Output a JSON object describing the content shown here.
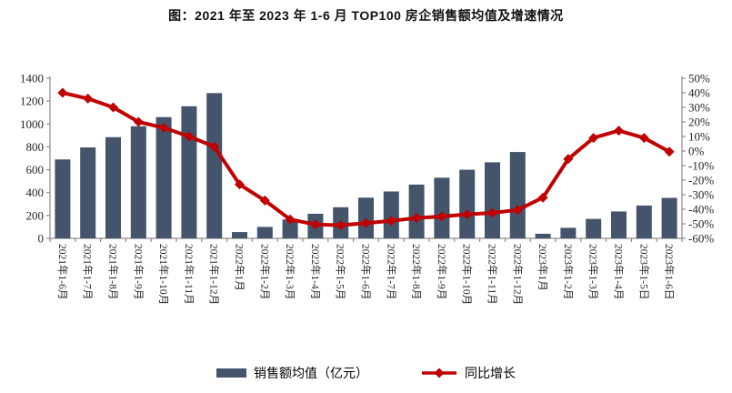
{
  "title": "图：2021 年至 2023 年 1-6 月 TOP100 房企销售额均值及增速情况",
  "legend": {
    "bar_label": "销售额均值（亿元）",
    "line_label": "同比增长"
  },
  "colors": {
    "bar": "#44546A",
    "line": "#C00000",
    "axis": "#8C8C8C",
    "tick_text": "#262626"
  },
  "chart_data": {
    "type": "bar",
    "subtype": "bar+line dual axis",
    "title": "图：2021 年至 2023 年 1-6 月 TOP100 房企销售额均值及增速情况",
    "categories": [
      "2021年1-6月",
      "2021年1-7月",
      "2021年1-8月",
      "2021年1-9月",
      "2021年1-10月",
      "2021年1-11月",
      "2021年1-12月",
      "2022年1月",
      "2022年1-2月",
      "2022年1-3月",
      "2022年1-4月",
      "2022年1-5月",
      "2022年1-6月",
      "2022年1-7月",
      "2022年1-8月",
      "2022年1-9月",
      "2022年1-10月",
      "2022年1-11月",
      "2022年1-12月",
      "2023年1月",
      "2023年1-2月",
      "2023年1-3月",
      "2023年1-4月",
      "2023年1-5日",
      "2023年1-6日"
    ],
    "series": [
      {
        "name": "销售额均值（亿元）",
        "type": "bar",
        "axis": "left",
        "values": [
          690,
          795,
          885,
          980,
          1060,
          1155,
          1270,
          55,
          100,
          165,
          215,
          272,
          356,
          410,
          470,
          530,
          600,
          665,
          755,
          40,
          92,
          170,
          235,
          287,
          354
        ]
      },
      {
        "name": "同比增长",
        "type": "line",
        "axis": "right",
        "unit": "%",
        "values": [
          40,
          36,
          30,
          20,
          16,
          10,
          3,
          -23,
          -34,
          -47,
          -50.5,
          -51,
          -49.5,
          -48,
          -46,
          -45,
          -43.5,
          -42.5,
          -40.5,
          -32,
          -5.5,
          9,
          14,
          9,
          -0.5
        ]
      }
    ],
    "left_axis": {
      "min": 0,
      "max": 1400,
      "step": 200,
      "tick_labels": [
        "0",
        "200",
        "400",
        "600",
        "800",
        "1000",
        "1200",
        "1400"
      ]
    },
    "right_axis": {
      "min": -60,
      "max": 50,
      "step": 10,
      "tick_labels": [
        "50%",
        "40%",
        "30%",
        "20%",
        "10%",
        "0%",
        "-10%",
        "-20%",
        "-30%",
        "-40%",
        "-50%",
        "-60%"
      ]
    },
    "grid": false,
    "legend_position": "bottom"
  }
}
